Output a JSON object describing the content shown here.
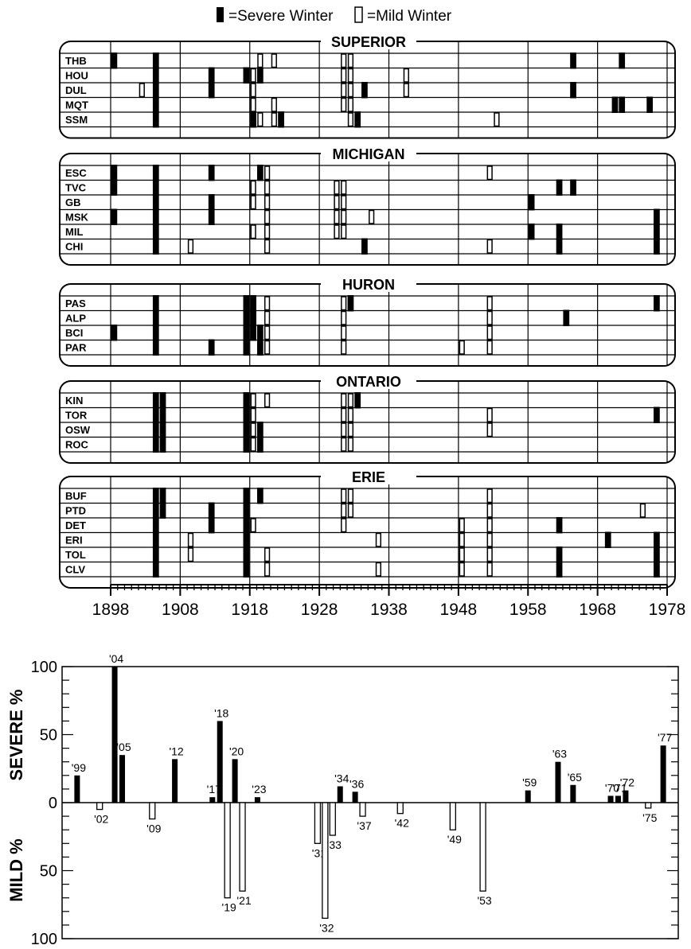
{
  "legend": {
    "severe_label": "=Severe Winter",
    "mild_label": "=Mild Winter"
  },
  "colors": {
    "severe": "#000000",
    "mild": "#ffffff",
    "ink": "#000000"
  },
  "chart_data": [
    {
      "type": "heatmap",
      "xaxis": {
        "range": [
          1898,
          1978
        ],
        "ticks": [
          1898,
          1908,
          1918,
          1928,
          1938,
          1948,
          1958,
          1968,
          1978
        ]
      },
      "panels": [
        {
          "name": "SUPERIOR",
          "stations": [
            "THB",
            "HOU",
            "DUL",
            "MQT",
            "SSM"
          ],
          "severe": [
            [
              "THB",
              1898
            ],
            [
              "THB",
              1904
            ],
            [
              "THB",
              1964
            ],
            [
              "THB",
              1971
            ],
            [
              "HOU",
              1904
            ],
            [
              "HOU",
              1912
            ],
            [
              "HOU",
              1917
            ],
            [
              "HOU",
              1919
            ],
            [
              "DUL",
              1904
            ],
            [
              "DUL",
              1912
            ],
            [
              "DUL",
              1934
            ],
            [
              "DUL",
              1964
            ],
            [
              "MQT",
              1904
            ],
            [
              "MQT",
              1970
            ],
            [
              "MQT",
              1971
            ],
            [
              "MQT",
              1975
            ],
            [
              "SSM",
              1904
            ],
            [
              "SSM",
              1918
            ],
            [
              "SSM",
              1922
            ],
            [
              "SSM",
              1933
            ]
          ],
          "mild": [
            [
              "THB",
              1919
            ],
            [
              "THB",
              1921
            ],
            [
              "THB",
              1931
            ],
            [
              "THB",
              1932
            ],
            [
              "HOU",
              1918
            ],
            [
              "HOU",
              1931
            ],
            [
              "HOU",
              1932
            ],
            [
              "HOU",
              1940
            ],
            [
              "DUL",
              1902
            ],
            [
              "DUL",
              1918
            ],
            [
              "DUL",
              1931
            ],
            [
              "DUL",
              1932
            ],
            [
              "DUL",
              1940
            ],
            [
              "MQT",
              1918
            ],
            [
              "MQT",
              1921
            ],
            [
              "MQT",
              1931
            ],
            [
              "MQT",
              1932
            ],
            [
              "SSM",
              1919
            ],
            [
              "SSM",
              1921
            ],
            [
              "SSM",
              1932
            ],
            [
              "SSM",
              1953
            ]
          ]
        },
        {
          "name": "MICHIGAN",
          "stations": [
            "ESC",
            "TVC",
            "GB",
            "MSK",
            "MIL",
            "CHI"
          ],
          "severe": [
            [
              "ESC",
              1898
            ],
            [
              "ESC",
              1904
            ],
            [
              "ESC",
              1912
            ],
            [
              "ESC",
              1919
            ],
            [
              "TVC",
              1898
            ],
            [
              "TVC",
              1904
            ],
            [
              "TVC",
              1962
            ],
            [
              "TVC",
              1964
            ],
            [
              "GB",
              1904
            ],
            [
              "GB",
              1912
            ],
            [
              "GB",
              1958
            ],
            [
              "MSK",
              1898
            ],
            [
              "MSK",
              1904
            ],
            [
              "MSK",
              1912
            ],
            [
              "MSK",
              1976
            ],
            [
              "MIL",
              1904
            ],
            [
              "MIL",
              1958
            ],
            [
              "MIL",
              1962
            ],
            [
              "MIL",
              1976
            ],
            [
              "CHI",
              1904
            ],
            [
              "CHI",
              1934
            ],
            [
              "CHI",
              1962
            ],
            [
              "CHI",
              1976
            ]
          ],
          "mild": [
            [
              "ESC",
              1920
            ],
            [
              "ESC",
              1952
            ],
            [
              "TVC",
              1918
            ],
            [
              "TVC",
              1920
            ],
            [
              "TVC",
              1930
            ],
            [
              "TVC",
              1931
            ],
            [
              "GB",
              1918
            ],
            [
              "GB",
              1920
            ],
            [
              "GB",
              1930
            ],
            [
              "GB",
              1931
            ],
            [
              "MSK",
              1920
            ],
            [
              "MSK",
              1930
            ],
            [
              "MSK",
              1931
            ],
            [
              "MSK",
              1935
            ],
            [
              "MIL",
              1918
            ],
            [
              "MIL",
              1920
            ],
            [
              "MIL",
              1930
            ],
            [
              "MIL",
              1931
            ],
            [
              "CHI",
              1909
            ],
            [
              "CHI",
              1920
            ],
            [
              "CHI",
              1952
            ]
          ]
        },
        {
          "name": "HURON",
          "stations": [
            "PAS",
            "ALP",
            "BCI",
            "PAR"
          ],
          "severe": [
            [
              "PAS",
              1904
            ],
            [
              "PAS",
              1917
            ],
            [
              "PAS",
              1918
            ],
            [
              "PAS",
              1932
            ],
            [
              "PAS",
              1976
            ],
            [
              "ALP",
              1904
            ],
            [
              "ALP",
              1917
            ],
            [
              "ALP",
              1918
            ],
            [
              "ALP",
              1963
            ],
            [
              "BCI",
              1898
            ],
            [
              "BCI",
              1904
            ],
            [
              "BCI",
              1917
            ],
            [
              "BCI",
              1918
            ],
            [
              "BCI",
              1919
            ],
            [
              "PAR",
              1904
            ],
            [
              "PAR",
              1912
            ],
            [
              "PAR",
              1917
            ],
            [
              "PAR",
              1919
            ]
          ],
          "mild": [
            [
              "PAS",
              1920
            ],
            [
              "PAS",
              1931
            ],
            [
              "PAS",
              1952
            ],
            [
              "ALP",
              1920
            ],
            [
              "ALP",
              1931
            ],
            [
              "ALP",
              1952
            ],
            [
              "BCI",
              1920
            ],
            [
              "BCI",
              1931
            ],
            [
              "BCI",
              1952
            ],
            [
              "PAR",
              1920
            ],
            [
              "PAR",
              1931
            ],
            [
              "PAR",
              1948
            ],
            [
              "PAR",
              1952
            ]
          ]
        },
        {
          "name": "ONTARIO",
          "stations": [
            "KIN",
            "TOR",
            "OSW",
            "ROC"
          ],
          "severe": [
            [
              "KIN",
              1904
            ],
            [
              "KIN",
              1905
            ],
            [
              "KIN",
              1917
            ],
            [
              "KIN",
              1933
            ],
            [
              "TOR",
              1904
            ],
            [
              "TOR",
              1905
            ],
            [
              "TOR",
              1917
            ],
            [
              "TOR",
              1976
            ],
            [
              "OSW",
              1904
            ],
            [
              "OSW",
              1905
            ],
            [
              "OSW",
              1917
            ],
            [
              "OSW",
              1919
            ],
            [
              "ROC",
              1904
            ],
            [
              "ROC",
              1905
            ],
            [
              "ROC",
              1917
            ],
            [
              "ROC",
              1919
            ]
          ],
          "mild": [
            [
              "KIN",
              1918
            ],
            [
              "KIN",
              1920
            ],
            [
              "KIN",
              1931
            ],
            [
              "KIN",
              1932
            ],
            [
              "TOR",
              1918
            ],
            [
              "TOR",
              1931
            ],
            [
              "TOR",
              1932
            ],
            [
              "TOR",
              1952
            ],
            [
              "OSW",
              1918
            ],
            [
              "OSW",
              1931
            ],
            [
              "OSW",
              1932
            ],
            [
              "OSW",
              1952
            ],
            [
              "ROC",
              1918
            ],
            [
              "ROC",
              1931
            ],
            [
              "ROC",
              1932
            ]
          ]
        },
        {
          "name": "ERIE",
          "stations": [
            "BUF",
            "PTD",
            "DET",
            "ERI",
            "TOL",
            "CLV"
          ],
          "severe": [
            [
              "BUF",
              1904
            ],
            [
              "BUF",
              1905
            ],
            [
              "BUF",
              1917
            ],
            [
              "BUF",
              1919
            ],
            [
              "PTD",
              1904
            ],
            [
              "PTD",
              1905
            ],
            [
              "PTD",
              1912
            ],
            [
              "PTD",
              1917
            ],
            [
              "DET",
              1904
            ],
            [
              "DET",
              1912
            ],
            [
              "DET",
              1917
            ],
            [
              "DET",
              1962
            ],
            [
              "ERI",
              1904
            ],
            [
              "ERI",
              1917
            ],
            [
              "ERI",
              1969
            ],
            [
              "ERI",
              1976
            ],
            [
              "TOL",
              1904
            ],
            [
              "TOL",
              1917
            ],
            [
              "TOL",
              1962
            ],
            [
              "TOL",
              1976
            ],
            [
              "CLV",
              1904
            ],
            [
              "CLV",
              1917
            ],
            [
              "CLV",
              1962
            ],
            [
              "CLV",
              1976
            ]
          ],
          "mild": [
            [
              "BUF",
              1931
            ],
            [
              "BUF",
              1932
            ],
            [
              "BUF",
              1952
            ],
            [
              "PTD",
              1931
            ],
            [
              "PTD",
              1932
            ],
            [
              "PTD",
              1952
            ],
            [
              "PTD",
              1974
            ],
            [
              "DET",
              1918
            ],
            [
              "DET",
              1931
            ],
            [
              "DET",
              1948
            ],
            [
              "DET",
              1952
            ],
            [
              "ERI",
              1909
            ],
            [
              "ERI",
              1936
            ],
            [
              "ERI",
              1948
            ],
            [
              "ERI",
              1952
            ],
            [
              "TOL",
              1909
            ],
            [
              "TOL",
              1920
            ],
            [
              "TOL",
              1948
            ],
            [
              "TOL",
              1952
            ],
            [
              "CLV",
              1920
            ],
            [
              "CLV",
              1936
            ],
            [
              "CLV",
              1948
            ],
            [
              "CLV",
              1952
            ]
          ]
        }
      ]
    },
    {
      "type": "bar",
      "ylabel_top": "SEVERE %",
      "ylabel_bottom": "MILD %",
      "yticks": [
        "100",
        "50",
        "0",
        "50",
        "100"
      ],
      "ylim": [
        -100,
        100
      ],
      "xlim": [
        1897,
        1979
      ],
      "bars": [
        {
          "year": 1899,
          "value": 20,
          "label": "'99"
        },
        {
          "year": 1902,
          "value": -5,
          "label": "'02"
        },
        {
          "year": 1904,
          "value": 100,
          "label": "'04"
        },
        {
          "year": 1905,
          "value": 35,
          "label": "'05"
        },
        {
          "year": 1909,
          "value": -12,
          "label": "'09"
        },
        {
          "year": 1912,
          "value": 32,
          "label": "'12"
        },
        {
          "year": 1917,
          "value": 4,
          "label": "'17"
        },
        {
          "year": 1918,
          "value": 60,
          "label": "'18"
        },
        {
          "year": 1919,
          "value": -70,
          "label": "'19"
        },
        {
          "year": 1920,
          "value": 32,
          "label": "'20"
        },
        {
          "year": 1921,
          "value": -65,
          "label": "'21"
        },
        {
          "year": 1923,
          "value": 4,
          "label": "'23"
        },
        {
          "year": 1931,
          "value": -30,
          "label": "'31"
        },
        {
          "year": 1932,
          "value": -85,
          "label": "'32"
        },
        {
          "year": 1933,
          "value": -24,
          "label": "'33"
        },
        {
          "year": 1934,
          "value": 12,
          "label": "'34"
        },
        {
          "year": 1936,
          "value": 8,
          "label": "'36"
        },
        {
          "year": 1937,
          "value": -10,
          "label": "'37"
        },
        {
          "year": 1942,
          "value": -8,
          "label": "'42"
        },
        {
          "year": 1949,
          "value": -20,
          "label": "'49"
        },
        {
          "year": 1953,
          "value": -65,
          "label": "'53"
        },
        {
          "year": 1959,
          "value": 9,
          "label": "'59"
        },
        {
          "year": 1963,
          "value": 30,
          "label": "'63"
        },
        {
          "year": 1965,
          "value": 13,
          "label": "'65"
        },
        {
          "year": 1970,
          "value": 5,
          "label": "'70"
        },
        {
          "year": 1971,
          "value": 5,
          "label": "'71"
        },
        {
          "year": 1972,
          "value": 9,
          "label": "'72"
        },
        {
          "year": 1975,
          "value": -4,
          "label": "'75"
        },
        {
          "year": 1977,
          "value": 42,
          "label": "'77"
        }
      ]
    }
  ]
}
